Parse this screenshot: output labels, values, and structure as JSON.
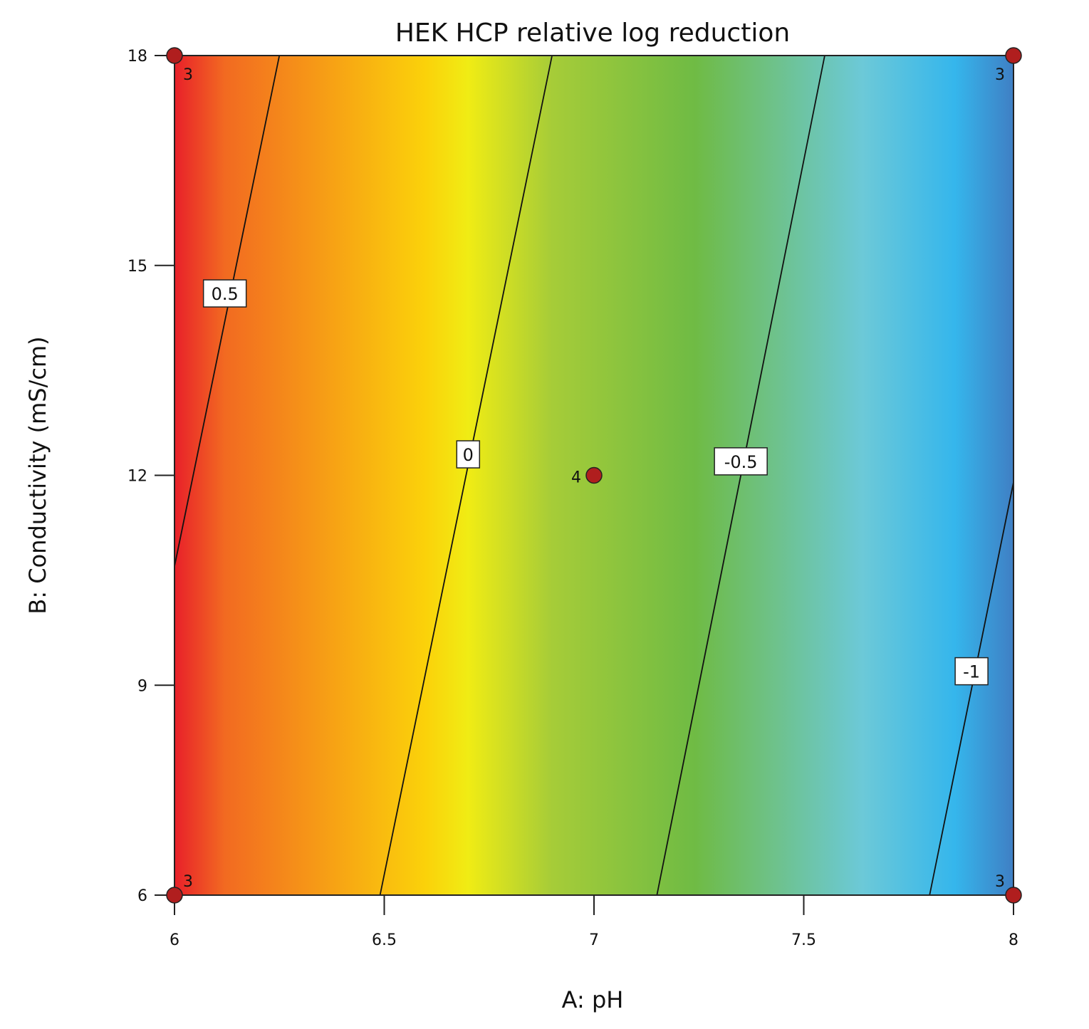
{
  "chart_data": {
    "type": "heatmap",
    "title": "HEK HCP relative log reduction",
    "xlabel": "A: pH",
    "ylabel": "B: Conductivity (mS/cm)",
    "xlim": [
      6,
      8
    ],
    "ylim": [
      6,
      18
    ],
    "x_ticks": [
      "6",
      "6.5",
      "7",
      "7.5",
      "8"
    ],
    "y_ticks": [
      "6",
      "9",
      "12",
      "15",
      "18"
    ],
    "colormap": [
      "#e8202a",
      "#f26a21",
      "#fbd20a",
      "#f0ec14",
      "#a6cc38",
      "#6fbb44",
      "#6cc9d8",
      "#35b6ec",
      "#3f7fc4"
    ],
    "contours": [
      {
        "level": "0.5",
        "points": [
          [
            6.0,
            10.7
          ],
          [
            6.25,
            18.0
          ]
        ]
      },
      {
        "level": "0",
        "points": [
          [
            6.49,
            6.0
          ],
          [
            6.9,
            18.0
          ]
        ]
      },
      {
        "level": "-0.5",
        "points": [
          [
            7.15,
            6.0
          ],
          [
            7.55,
            18.0
          ]
        ]
      },
      {
        "level": "-1",
        "points": [
          [
            7.8,
            6.0
          ],
          [
            8.0,
            11.9
          ]
        ]
      }
    ],
    "contour_labels": [
      {
        "text": "0.5",
        "x": 6.12,
        "y": 14.6
      },
      {
        "text": "0",
        "x": 6.7,
        "y": 12.3
      },
      {
        "text": "-0.5",
        "x": 7.35,
        "y": 12.2
      },
      {
        "text": "-1",
        "x": 7.9,
        "y": 9.2
      }
    ],
    "design_points": [
      {
        "x": 6,
        "y": 18,
        "count": "3"
      },
      {
        "x": 8,
        "y": 18,
        "count": "3"
      },
      {
        "x": 6,
        "y": 6,
        "count": "3"
      },
      {
        "x": 8,
        "y": 6,
        "count": "3"
      },
      {
        "x": 7,
        "y": 12,
        "count": "4"
      }
    ],
    "point_color": "#b01e1e"
  }
}
